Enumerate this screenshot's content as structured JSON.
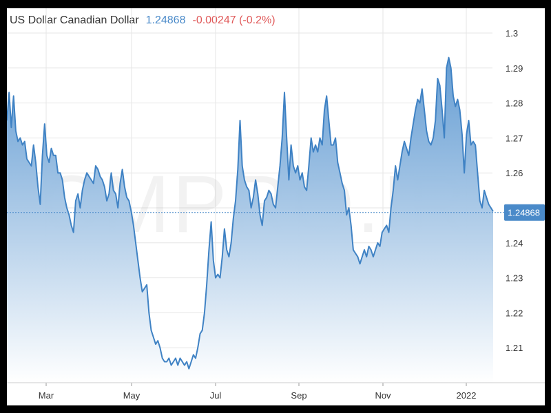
{
  "header": {
    "title": "US Dollar Canadian Dollar",
    "last": "1.24868",
    "change": "-0.00247 (-0.2%)"
  },
  "watermark": "CMPRO.IR",
  "colors": {
    "line": "#3f82c4",
    "fill_top": "#5d98d1",
    "fill_bottom": "#ffffff",
    "label_bg": "#4a8ac9",
    "change": "#e05a5a",
    "grid": "#e6e6e6"
  },
  "chart_data": {
    "type": "area",
    "title": "US Dollar Canadian Dollar",
    "xlabel": "",
    "ylabel": "",
    "ylim": [
      1.2,
      1.3
    ],
    "yticks": [
      1.21,
      1.22,
      1.23,
      1.24,
      1.25,
      1.26,
      1.27,
      1.28,
      1.29,
      1.3
    ],
    "xtick_labels": [
      "Mar",
      "May",
      "Jul",
      "Sep",
      "Nov",
      "2022"
    ],
    "current_label": "1.24868",
    "grid": true,
    "series": [
      {
        "values": [
          1.275,
          1.283,
          1.273,
          1.282,
          1.272,
          1.269,
          1.27,
          1.268,
          1.269,
          1.264,
          1.263,
          1.262,
          1.268,
          1.263,
          1.256,
          1.251,
          1.265,
          1.274,
          1.265,
          1.263,
          1.267,
          1.265,
          1.265,
          1.26,
          1.26,
          1.258,
          1.253,
          1.25,
          1.248,
          1.245,
          1.243,
          1.252,
          1.254,
          1.25,
          1.255,
          1.258,
          1.26,
          1.259,
          1.258,
          1.257,
          1.262,
          1.261,
          1.259,
          1.258,
          1.256,
          1.252,
          1.254,
          1.26,
          1.255,
          1.254,
          1.25,
          1.257,
          1.261,
          1.256,
          1.253,
          1.252,
          1.249,
          1.245,
          1.24,
          1.235,
          1.23,
          1.226,
          1.227,
          1.228,
          1.22,
          1.215,
          1.213,
          1.211,
          1.212,
          1.21,
          1.207,
          1.206,
          1.206,
          1.207,
          1.205,
          1.206,
          1.207,
          1.205,
          1.207,
          1.206,
          1.205,
          1.206,
          1.204,
          1.206,
          1.208,
          1.207,
          1.21,
          1.214,
          1.215,
          1.22,
          1.228,
          1.238,
          1.246,
          1.235,
          1.23,
          1.231,
          1.23,
          1.236,
          1.244,
          1.238,
          1.236,
          1.24,
          1.247,
          1.252,
          1.261,
          1.275,
          1.262,
          1.258,
          1.256,
          1.255,
          1.25,
          1.253,
          1.258,
          1.254,
          1.248,
          1.245,
          1.252,
          1.253,
          1.255,
          1.254,
          1.251,
          1.25,
          1.256,
          1.262,
          1.27,
          1.283,
          1.27,
          1.258,
          1.268,
          1.262,
          1.26,
          1.262,
          1.258,
          1.26,
          1.256,
          1.255,
          1.262,
          1.27,
          1.266,
          1.268,
          1.266,
          1.27,
          1.268,
          1.278,
          1.282,
          1.275,
          1.268,
          1.268,
          1.27,
          1.263,
          1.26,
          1.257,
          1.255,
          1.248,
          1.25,
          1.245,
          1.238,
          1.237,
          1.236,
          1.234,
          1.236,
          1.238,
          1.236,
          1.239,
          1.238,
          1.236,
          1.238,
          1.24,
          1.239,
          1.243,
          1.244,
          1.245,
          1.243,
          1.25,
          1.255,
          1.262,
          1.258,
          1.262,
          1.266,
          1.269,
          1.267,
          1.265,
          1.27,
          1.274,
          1.278,
          1.281,
          1.28,
          1.284,
          1.278,
          1.272,
          1.269,
          1.268,
          1.27,
          1.275,
          1.287,
          1.285,
          1.278,
          1.27,
          1.29,
          1.293,
          1.29,
          1.282,
          1.279,
          1.281,
          1.278,
          1.271,
          1.26,
          1.271,
          1.275,
          1.268,
          1.269,
          1.268,
          1.26,
          1.252,
          1.25,
          1.255,
          1.253,
          1.251,
          1.25,
          1.249
        ]
      }
    ]
  }
}
